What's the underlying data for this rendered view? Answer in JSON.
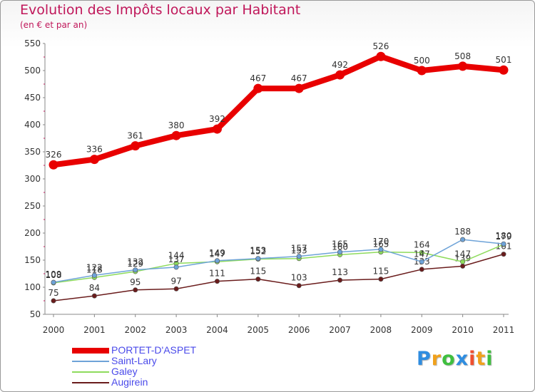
{
  "header": {
    "title": "Evolution des Impôts locaux par Habitant",
    "subtitle": "(en € et par an)"
  },
  "chart_data": {
    "type": "line",
    "title": "Evolution des Impôts locaux par Habitant",
    "subtitle": "(en € et par an)",
    "xlabel": "",
    "ylabel": "",
    "ylim": [
      50,
      550
    ],
    "yticks": [
      50,
      100,
      150,
      200,
      250,
      300,
      350,
      400,
      450,
      500,
      550
    ],
    "grid": false,
    "legend_position": "bottom-left",
    "categories": [
      "2000",
      "2001",
      "2002",
      "2003",
      "2004",
      "2005",
      "2006",
      "2007",
      "2008",
      "2009",
      "2010",
      "2011"
    ],
    "series": [
      {
        "name": "PORTET-D'ASPET",
        "color": "#e80000",
        "values": [
          326,
          336,
          361,
          380,
          392,
          467,
          467,
          492,
          526,
          500,
          508,
          501
        ]
      },
      {
        "name": "Saint-Lary",
        "color": "#6ea3d8",
        "values": [
          109,
          122,
          132,
          137,
          149,
          153,
          157,
          165,
          170,
          147,
          188,
          180
        ]
      },
      {
        "name": "Galey",
        "color": "#8edb5c",
        "values": [
          108,
          118,
          129,
          144,
          147,
          152,
          153,
          160,
          165,
          164,
          147,
          179
        ]
      },
      {
        "name": "Augirein",
        "color": "#6a1c1c",
        "values": [
          75,
          84,
          95,
          97,
          111,
          115,
          103,
          113,
          115,
          133,
          139,
          161
        ]
      }
    ]
  },
  "branding": {
    "logo_letters": [
      "P",
      "r",
      "o",
      "x",
      "i",
      "t",
      "i"
    ],
    "logo_colors": [
      "#2f8de0",
      "#f0a11c",
      "#3fbf3f",
      "#2f8de0",
      "#ef4f2f",
      "#f0a11c",
      "#3fbf3f"
    ]
  }
}
